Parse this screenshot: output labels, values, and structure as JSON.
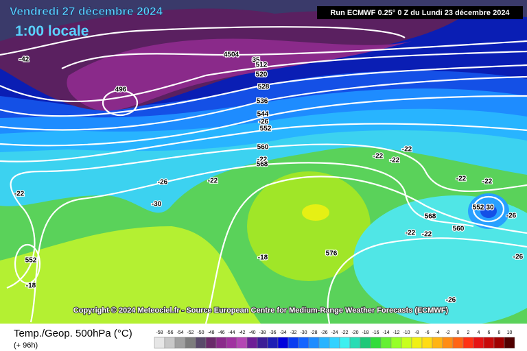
{
  "header": {
    "date": "Vendredi 27 décembre 2024",
    "time": "1:00 locale",
    "run": "Run ECMWF 0.25° 0 Z du Lundi 23 décembre 2024"
  },
  "copyright": "Copyright © 2024 Meteociel.fr - Source European Centre for Medium-Range Weather Forecasts (ECMWF)",
  "footer": {
    "title": "Temp./Geop. 500hPa (°C)",
    "lead": "(+ 96h)"
  },
  "scale": {
    "values": [
      -58,
      -56,
      -54,
      -52,
      -50,
      -48,
      -46,
      -44,
      -42,
      -40,
      -38,
      -36,
      -34,
      -32,
      -30,
      -28,
      -26,
      -24,
      -22,
      -20,
      -18,
      -16,
      -14,
      -12,
      -10,
      -8,
      -6,
      -4,
      -2,
      0,
      2,
      4,
      6,
      8,
      10
    ],
    "colors": [
      "#e6e6e6",
      "#c8c8c8",
      "#a0a0a0",
      "#7d7d7d",
      "#5a4a6a",
      "#6a2a6a",
      "#8a2a8a",
      "#a032a0",
      "#b446b4",
      "#6e1e96",
      "#3c1e96",
      "#1e1eb4",
      "#0000dc",
      "#0a3cf0",
      "#1464ff",
      "#1e8cff",
      "#28b4ff",
      "#32d2ff",
      "#3cf0f0",
      "#28dcb4",
      "#1ec878",
      "#32dc3c",
      "#64f032",
      "#96ff28",
      "#c8ff1e",
      "#f0f014",
      "#ffdc14",
      "#ffb414",
      "#ff8c14",
      "#ff6414",
      "#ff3214",
      "#e61414",
      "#c80a0a",
      "#a00000",
      "#500000"
    ]
  },
  "contour_labels": [
    "-42",
    "4504",
    "35",
    "512",
    "520",
    "528",
    "536",
    "496",
    "544",
    "-26",
    "552",
    "560",
    "-22",
    "568",
    "-26",
    "-22",
    "-30",
    "-22",
    "552",
    "-18",
    "-18",
    "576",
    "-22",
    "-22",
    "-22",
    "-22",
    "-22",
    "552",
    "30",
    "-26",
    "568",
    "-22",
    "-22",
    "560",
    "-26",
    "-26"
  ]
}
